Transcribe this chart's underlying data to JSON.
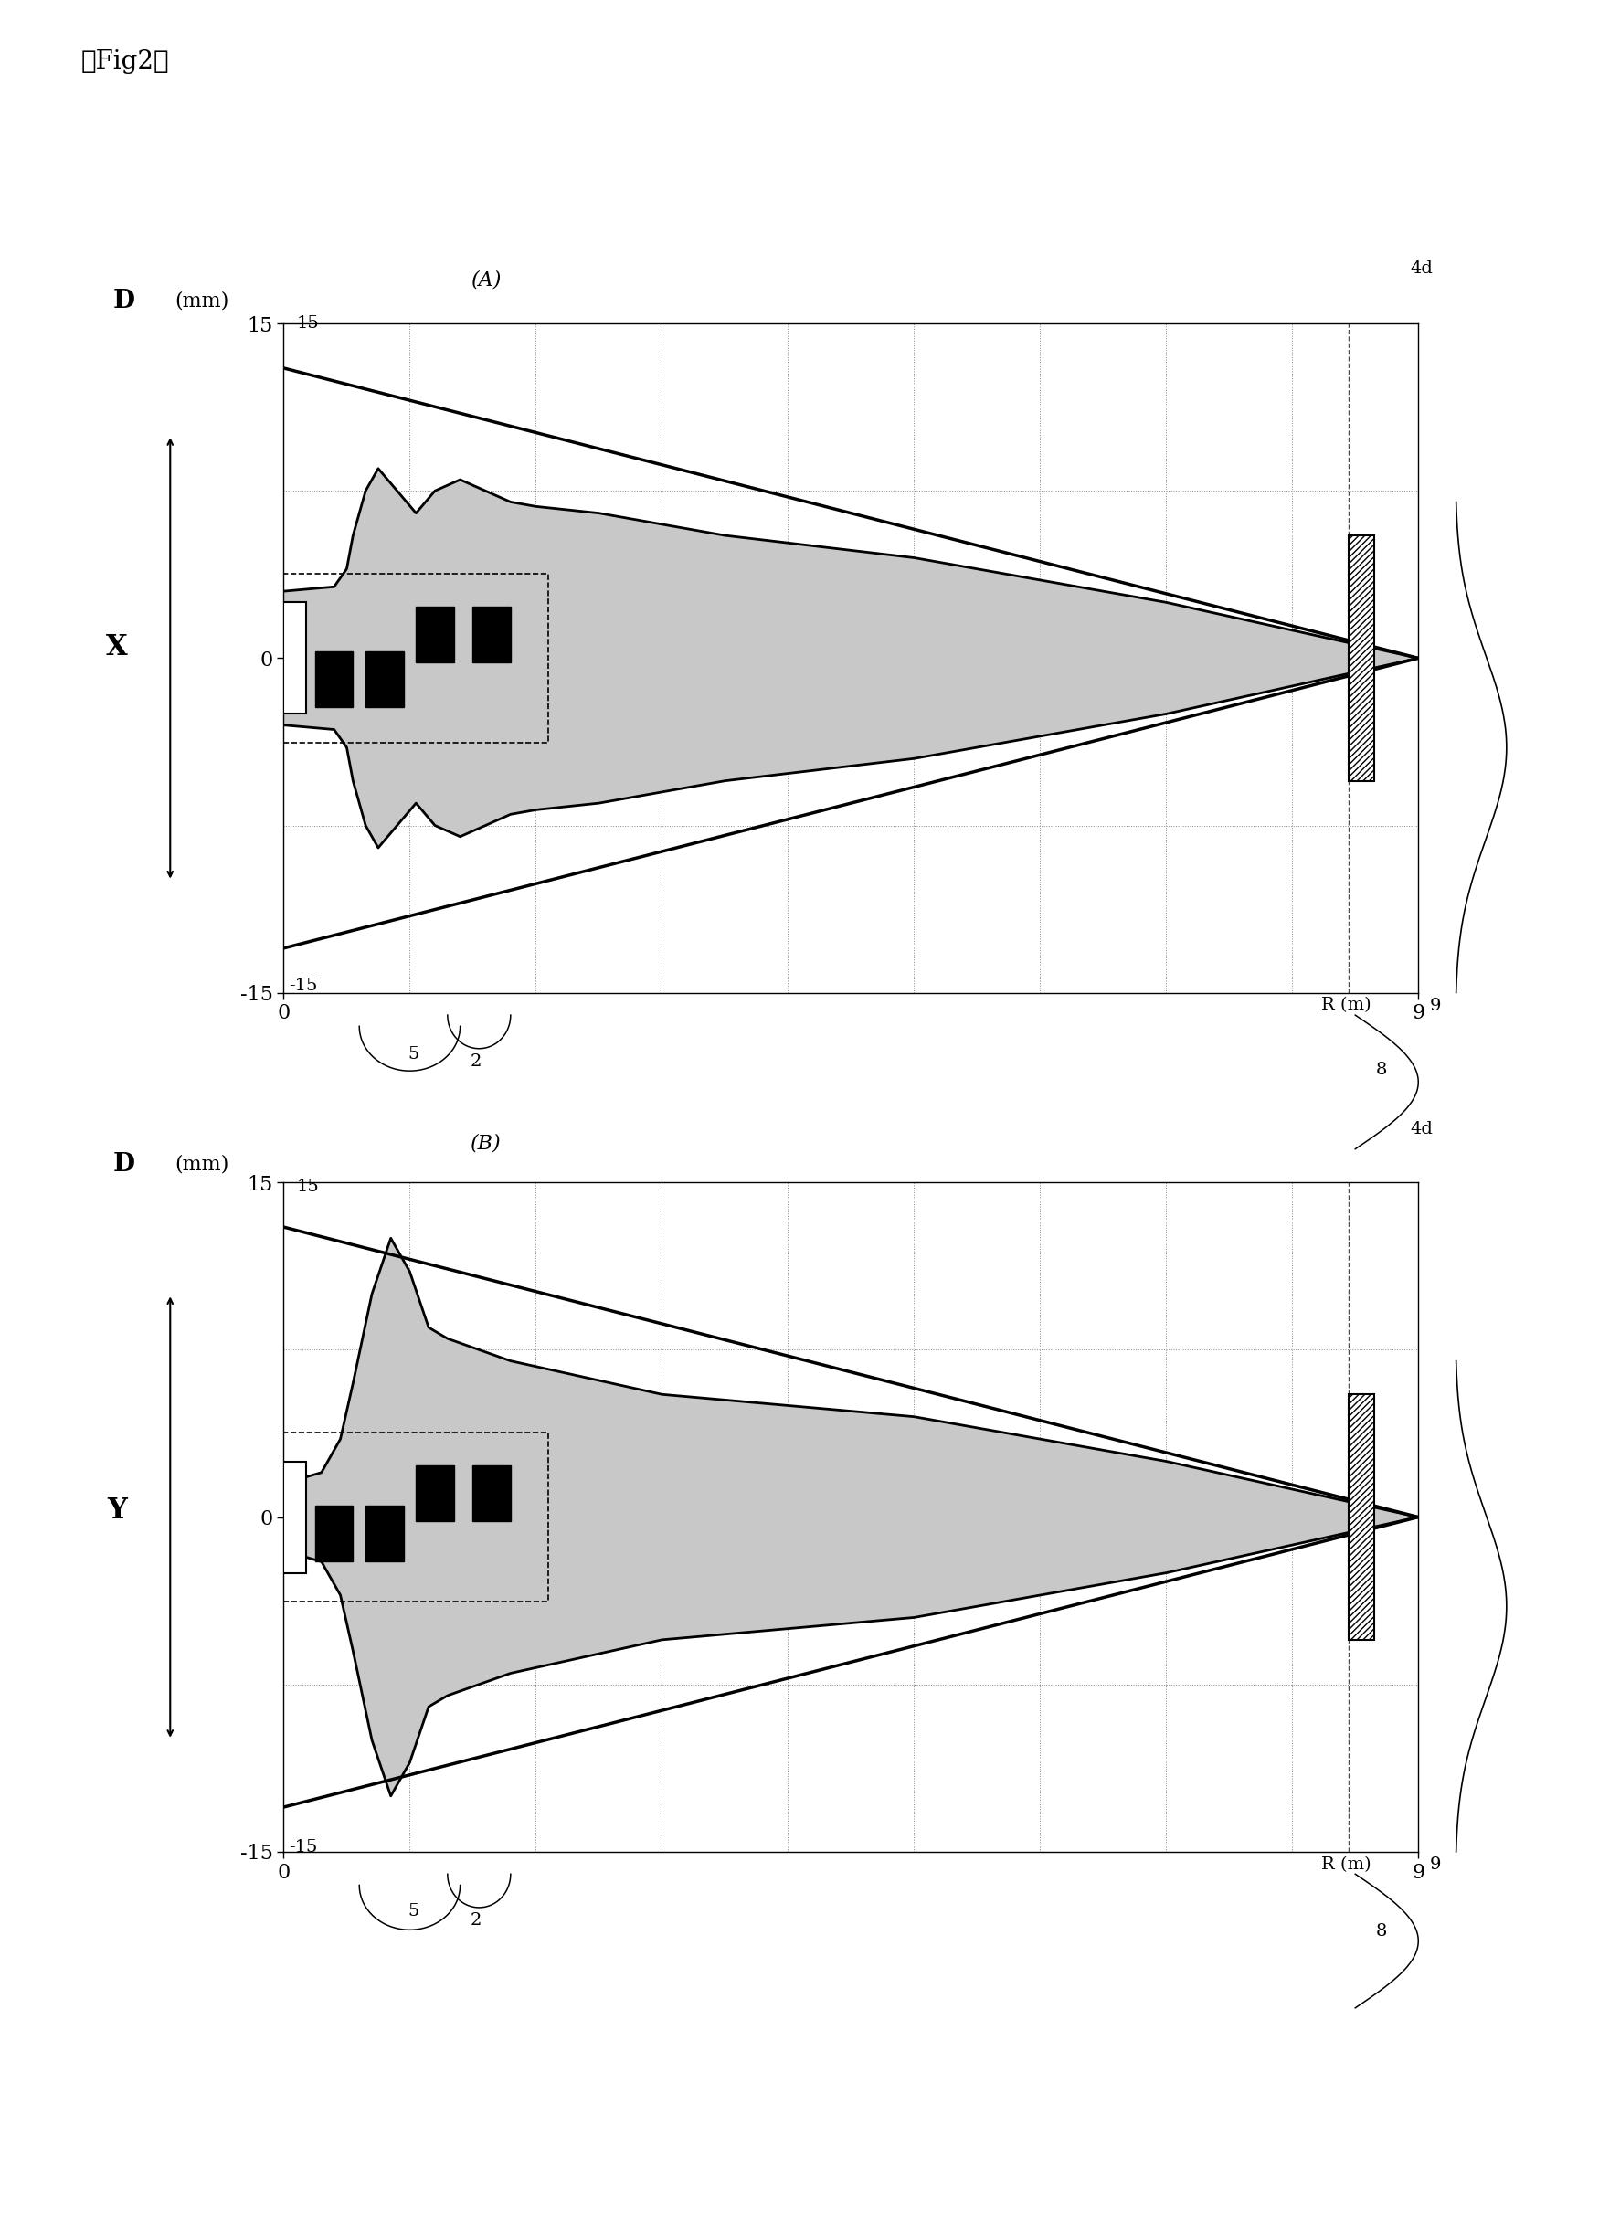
{
  "fig_label": "【Fig2】",
  "panel_A_label": "(A)",
  "panel_B_label": "(B)",
  "d_label": "D (mm)",
  "r_label": "R (m)",
  "x_label": "X",
  "y_label": "Y",
  "d_max": 15,
  "d_min": -15,
  "r_max": 9,
  "r_min": 0,
  "label_4d": "4d",
  "label_2": "2",
  "label_5": "5",
  "label_8": "8",
  "label_9": "9",
  "label_15": "15",
  "label_neg15": "-15",
  "label_0": "0",
  "bg_color": "#ffffff",
  "fill_color": "#c8c8c8",
  "line_color": "#000000",
  "grid_color": "#888888"
}
